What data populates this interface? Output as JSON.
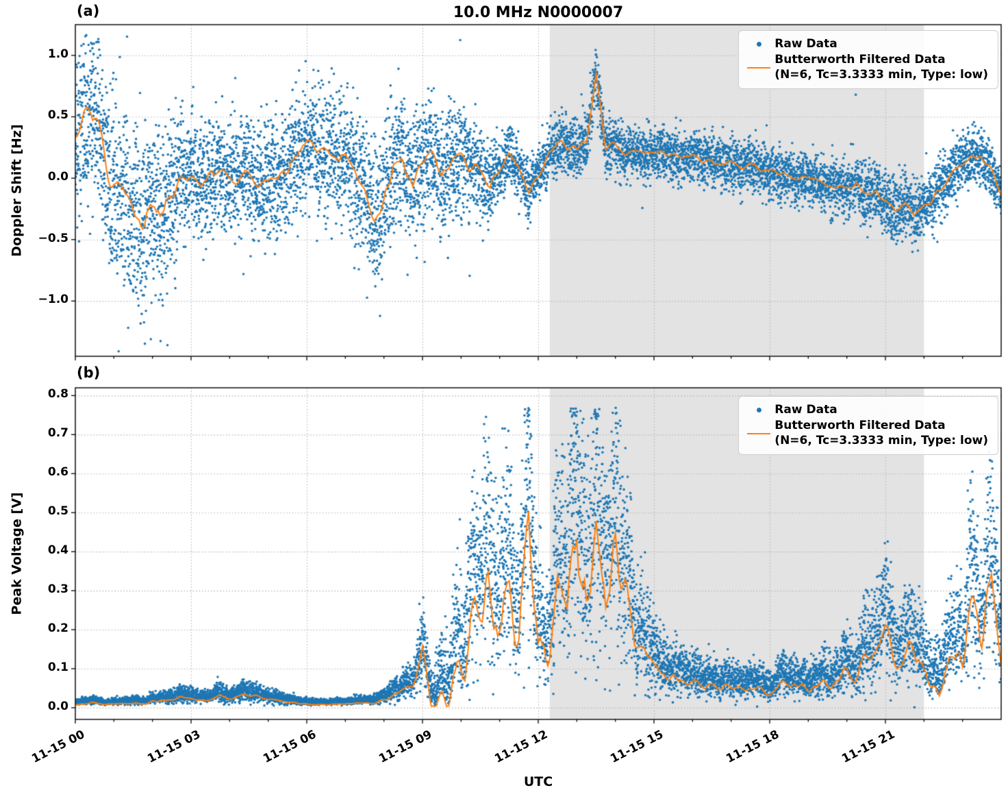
{
  "figure": {
    "title": "10.0 MHz N0000007",
    "panel_a_label": "(a)",
    "panel_b_label": "(b)",
    "xlabel": "UTC",
    "colors": {
      "raw": "#1f77b4",
      "filtered": "#ff7f0e",
      "shade": "rgba(128,128,128,0.22)",
      "grid": "#b3b3b3",
      "spine": "#000000"
    }
  },
  "legend": {
    "raw_label": "Raw Data",
    "filtered_label": "Butterworth Filtered Data",
    "filtered_sublabel": "(N=6, Tc=3.3333 min, Type: low)"
  },
  "chart_data": [
    {
      "type": "scatter",
      "panel": "a",
      "ylabel": "Doppler Shift [Hz]",
      "ylim": [
        -1.45,
        1.25
      ],
      "yticks": [
        1.0,
        0.5,
        0.0,
        -0.5,
        -1.0
      ],
      "ytick_labels": [
        "1.0",
        "0.5",
        "0.0",
        "−0.5",
        "−1.0"
      ],
      "xlim_hours": [
        0,
        24
      ],
      "xtick_hours": [
        0,
        3,
        6,
        9,
        12,
        15,
        18,
        21
      ],
      "xminor_step_hours": 1,
      "xtick_labels": [
        "11-15 00",
        "11-15 03",
        "11-15 06",
        "11-15 09",
        "11-15 12",
        "11-15 15",
        "11-15 18",
        "11-15 21"
      ],
      "shaded_region_hours": [
        12.3,
        22.0
      ],
      "line_wiggle_factor": 0.5,
      "series": [
        {
          "name": "Raw Data",
          "repr": "scatter",
          "points": 9000,
          "synthesized_from": "filtered series + raw_noise_envelope"
        },
        {
          "name": "Butterworth Filtered Data (N=6, Tc=3.3333 min, Type: low)",
          "repr": "line",
          "dt_hours": 0.25,
          "values": [
            0.3,
            0.55,
            0.45,
            0.2,
            0.05,
            -0.1,
            -0.25,
            -0.33,
            -0.2,
            -0.28,
            -0.1,
            -0.05,
            0.0,
            -0.05,
            0.02,
            -0.03,
            0.0,
            0.05,
            0.02,
            -0.02,
            0.0,
            0.03,
            0.05,
            0.2,
            0.28,
            0.22,
            0.18,
            0.25,
            0.15,
            0.05,
            -0.1,
            -0.28,
            -0.15,
            0.1,
            0.2,
            -0.1,
            0.15,
            0.2,
            0.05,
            0.1,
            0.15,
            0.1,
            0.05,
            -0.08,
            0.1,
            0.2,
            0.1,
            -0.12,
            -0.02,
            0.2,
            0.28,
            0.25,
            0.22,
            0.3,
            0.85,
            0.25,
            0.28,
            0.22,
            0.25,
            0.2,
            0.22,
            0.18,
            0.2,
            0.15,
            0.18,
            0.12,
            0.15,
            0.1,
            0.12,
            0.08,
            0.1,
            0.05,
            0.08,
            0.02,
            0.05,
            0.0,
            0.02,
            -0.02,
            -0.05,
            -0.08,
            -0.1,
            -0.08,
            -0.15,
            -0.12,
            -0.18,
            -0.25,
            -0.2,
            -0.3,
            -0.25,
            -0.15,
            -0.05,
            0.05,
            0.1,
            0.2,
            0.15,
            0.05,
            -0.1
          ]
        }
      ],
      "raw_noise_envelope": {
        "dt_hours": 1,
        "values": [
          0.38,
          0.45,
          0.4,
          0.3,
          0.25,
          0.28,
          0.3,
          0.33,
          0.35,
          0.3,
          0.28,
          0.15,
          0.12,
          0.15,
          0.13,
          0.12,
          0.12,
          0.12,
          0.12,
          0.12,
          0.14,
          0.15,
          0.15,
          0.13,
          0.12
        ]
      }
    },
    {
      "type": "scatter",
      "panel": "b",
      "ylabel": "Peak Voltage [V]",
      "ylim": [
        -0.03,
        0.82
      ],
      "yticks": [
        0.8,
        0.7,
        0.6,
        0.5,
        0.4,
        0.3,
        0.2,
        0.1,
        0.0
      ],
      "ytick_labels": [
        "0.8",
        "0.7",
        "0.6",
        "0.5",
        "0.4",
        "0.3",
        "0.2",
        "0.1",
        "0.0"
      ],
      "xlim_hours": [
        0,
        24
      ],
      "xtick_hours": [
        0,
        3,
        6,
        9,
        12,
        15,
        18,
        21
      ],
      "xminor_step_hours": 1,
      "xtick_labels": [
        "11-15 00",
        "11-15 03",
        "11-15 06",
        "11-15 09",
        "11-15 12",
        "11-15 15",
        "11-15 18",
        "11-15 21"
      ],
      "shaded_region_hours": [
        12.3,
        22.0
      ],
      "line_wiggle_factor": 0.8,
      "series": [
        {
          "name": "Raw Data",
          "repr": "scatter",
          "points": 9000,
          "synthesized_from": "filtered series + raw_noise_envelope"
        },
        {
          "name": "Butterworth Filtered Data (N=6, Tc=3.3333 min, Type: low)",
          "repr": "line",
          "dt_hours": 0.25,
          "values": [
            0.01,
            0.01,
            0.012,
            0.01,
            0.01,
            0.012,
            0.01,
            0.012,
            0.015,
            0.02,
            0.018,
            0.025,
            0.02,
            0.018,
            0.022,
            0.03,
            0.025,
            0.03,
            0.035,
            0.03,
            0.022,
            0.018,
            0.015,
            0.012,
            0.01,
            0.008,
            0.008,
            0.01,
            0.01,
            0.012,
            0.015,
            0.018,
            0.02,
            0.03,
            0.045,
            0.06,
            0.15,
            0.02,
            0.015,
            0.02,
            0.03,
            0.15,
            0.3,
            0.28,
            0.25,
            0.3,
            0.2,
            0.52,
            0.15,
            0.1,
            0.3,
            0.2,
            0.45,
            0.3,
            0.5,
            0.25,
            0.38,
            0.3,
            0.15,
            0.18,
            0.1,
            0.08,
            0.07,
            0.06,
            0.055,
            0.06,
            0.05,
            0.055,
            0.05,
            0.045,
            0.05,
            0.055,
            0.05,
            0.055,
            0.06,
            0.055,
            0.06,
            0.065,
            0.07,
            0.075,
            0.08,
            0.09,
            0.1,
            0.12,
            0.15,
            0.12,
            0.14,
            0.15,
            0.1,
            0.06,
            0.08,
            0.1,
            0.12,
            0.25,
            0.2,
            0.35,
            0.12
          ]
        }
      ],
      "raw_noise_envelope": {
        "dt_hours": 1,
        "values": [
          0.005,
          0.005,
          0.008,
          0.01,
          0.012,
          0.008,
          0.005,
          0.005,
          0.015,
          0.03,
          0.2,
          0.22,
          0.12,
          0.25,
          0.2,
          0.06,
          0.04,
          0.035,
          0.035,
          0.04,
          0.05,
          0.1,
          0.08,
          0.12,
          0.15
        ]
      }
    }
  ]
}
